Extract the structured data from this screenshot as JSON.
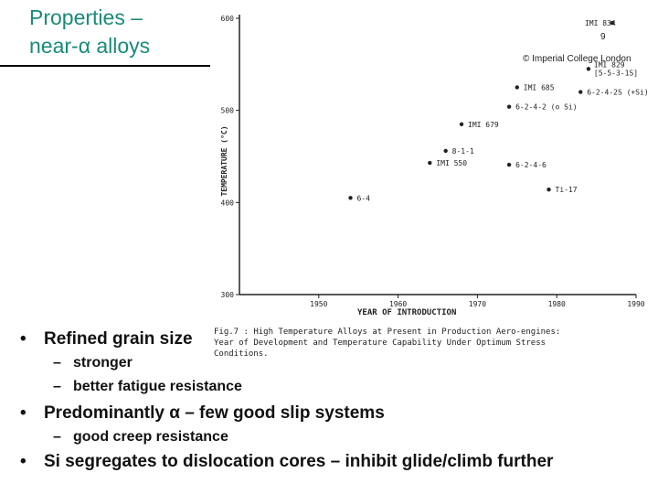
{
  "slide": {
    "title_line1": "Properties –",
    "title_line2": "near-α alloys",
    "page_number": "9",
    "copyright": "© Imperial College London"
  },
  "chart_data": {
    "type": "scatter",
    "ylabel": "TEMPERATURE (°C)",
    "xlabel": "YEAR OF INTRODUCTION",
    "xlim": [
      1940,
      1990
    ],
    "ylim": [
      300,
      600
    ],
    "x_ticks": [
      "1950",
      "1960",
      "1970",
      "1980",
      "1990"
    ],
    "y_ticks": [
      "300",
      "400",
      "500",
      "600"
    ],
    "points": [
      {
        "label": "6-4",
        "x": 1954,
        "y": 405
      },
      {
        "label": "IMI 550",
        "x": 1964,
        "y": 443
      },
      {
        "label": "8-1-1",
        "x": 1966,
        "y": 456
      },
      {
        "label": "IMI 679",
        "x": 1968,
        "y": 485
      },
      {
        "label": "IMI 685",
        "x": 1975,
        "y": 525
      },
      {
        "label": "6-2-4-2 (o Si)",
        "x": 1974,
        "y": 504
      },
      {
        "label": "6-2-4-6",
        "x": 1974,
        "y": 441
      },
      {
        "label": "6-2-4-2S (+Si)",
        "x": 1983,
        "y": 520
      },
      {
        "label": "IMI 829",
        "x": 1984,
        "y": 545
      },
      {
        "label": "[5-5-3-1S]",
        "x": 1984,
        "y": 545
      },
      {
        "label": "Ti-17",
        "x": 1979,
        "y": 414
      },
      {
        "label": "IMI 834",
        "x": 1987,
        "y": 595
      }
    ],
    "caption_line1": "Fig.7 : High Temperature Alloys at Present in Production Aero-engines:",
    "caption_line2": "Year of Development and Temperature Capability Under Optimum Stress",
    "caption_line3": "Conditions."
  },
  "bullets": {
    "b1": "Refined grain size",
    "b1_sub1": "stronger",
    "b1_sub2": "better fatigue resistance",
    "b2": "Predominantly α – few good slip systems",
    "b2_sub1": "good creep resistance",
    "b3": "Si segregates to dislocation cores – inhibit glide/climb further"
  }
}
